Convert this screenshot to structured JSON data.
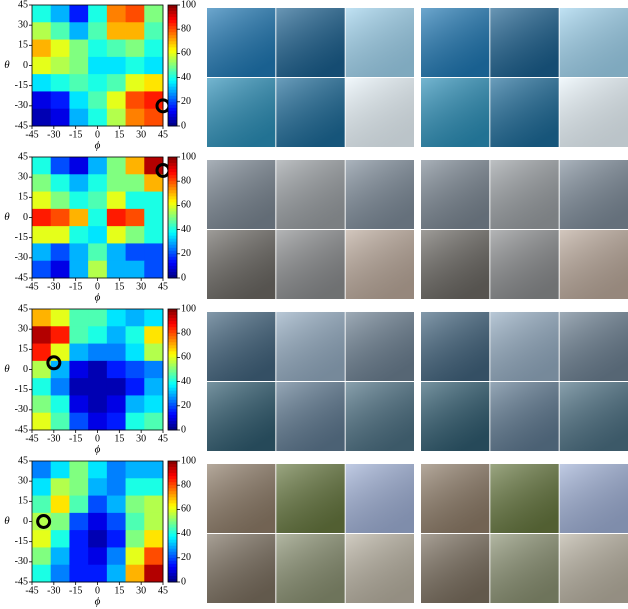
{
  "chart_data": [
    {
      "type": "heatmap",
      "xlabel": "ϕ",
      "ylabel": "θ",
      "xlim": [
        -45,
        45
      ],
      "ylim": [
        -45,
        45
      ],
      "xticks": [
        -45,
        -30,
        -15,
        0,
        15,
        30,
        45
      ],
      "yticks": [
        -45,
        -30,
        -15,
        0,
        15,
        30,
        45
      ],
      "clim": [
        0,
        100
      ],
      "cticks": [
        0,
        20,
        40,
        60,
        80,
        100
      ],
      "colormap": "jet",
      "marker": [
        45,
        -30
      ],
      "values": [
        [
          40,
          30,
          15,
          40,
          75,
          80,
          50
        ],
        [
          55,
          45,
          30,
          45,
          70,
          70,
          45
        ],
        [
          70,
          60,
          50,
          40,
          45,
          50,
          40
        ],
        [
          60,
          55,
          50,
          35,
          35,
          40,
          35
        ],
        [
          35,
          40,
          45,
          40,
          45,
          60,
          65
        ],
        [
          10,
          15,
          35,
          45,
          60,
          80,
          85
        ],
        [
          5,
          10,
          30,
          40,
          55,
          75,
          80
        ]
      ]
    },
    {
      "type": "heatmap",
      "xlabel": "ϕ",
      "ylabel": "θ",
      "xlim": [
        -45,
        45
      ],
      "ylim": [
        -45,
        45
      ],
      "xticks": [
        -45,
        -30,
        -15,
        0,
        15,
        30,
        45
      ],
      "yticks": [
        -45,
        -30,
        -15,
        0,
        15,
        30,
        45
      ],
      "clim": [
        0,
        100
      ],
      "cticks": [
        0,
        20,
        40,
        60,
        80,
        100
      ],
      "colormap": "jet",
      "marker": [
        45,
        35
      ],
      "values": [
        [
          40,
          20,
          10,
          30,
          50,
          70,
          95
        ],
        [
          50,
          40,
          30,
          40,
          50,
          50,
          70
        ],
        [
          60,
          50,
          40,
          45,
          60,
          40,
          40
        ],
        [
          85,
          80,
          70,
          40,
          85,
          80,
          40
        ],
        [
          60,
          60,
          40,
          35,
          60,
          50,
          40
        ],
        [
          30,
          20,
          30,
          45,
          30,
          20,
          20
        ],
        [
          20,
          10,
          30,
          55,
          30,
          30,
          20
        ]
      ]
    },
    {
      "type": "heatmap",
      "xlabel": "ϕ",
      "ylabel": "θ",
      "xlim": [
        -45,
        45
      ],
      "ylim": [
        -45,
        45
      ],
      "xticks": [
        -45,
        -30,
        -15,
        0,
        15,
        30,
        45
      ],
      "yticks": [
        -45,
        -30,
        -15,
        0,
        15,
        30,
        45
      ],
      "clim": [
        0,
        100
      ],
      "cticks": [
        0,
        20,
        40,
        60,
        80,
        100
      ],
      "colormap": "jet",
      "marker": [
        -30,
        5
      ],
      "values": [
        [
          70,
          60,
          45,
          45,
          35,
          30,
          35
        ],
        [
          95,
          85,
          45,
          40,
          30,
          40,
          65
        ],
        [
          85,
          60,
          30,
          25,
          25,
          35,
          55
        ],
        [
          55,
          30,
          10,
          5,
          15,
          20,
          25
        ],
        [
          40,
          25,
          5,
          5,
          5,
          15,
          30
        ],
        [
          50,
          40,
          10,
          5,
          10,
          30,
          35
        ],
        [
          60,
          45,
          20,
          10,
          15,
          40,
          45
        ]
      ]
    },
    {
      "type": "heatmap",
      "xlabel": "ϕ",
      "ylabel": "θ",
      "xlim": [
        -45,
        45
      ],
      "ylim": [
        -45,
        45
      ],
      "xticks": [
        -45,
        -30,
        -15,
        0,
        15,
        30,
        45
      ],
      "yticks": [
        -45,
        -30,
        -15,
        0,
        15,
        30,
        45
      ],
      "clim": [
        0,
        100
      ],
      "cticks": [
        0,
        20,
        40,
        60,
        80,
        100
      ],
      "colormap": "jet",
      "marker": [
        -37,
        0
      ],
      "values": [
        [
          25,
          35,
          50,
          35,
          25,
          30,
          30
        ],
        [
          35,
          55,
          50,
          30,
          25,
          40,
          40
        ],
        [
          45,
          65,
          45,
          20,
          30,
          50,
          55
        ],
        [
          55,
          50,
          20,
          10,
          20,
          45,
          55
        ],
        [
          60,
          40,
          15,
          5,
          15,
          50,
          65
        ],
        [
          50,
          30,
          15,
          10,
          25,
          60,
          80
        ],
        [
          40,
          25,
          15,
          15,
          30,
          70,
          95
        ]
      ]
    }
  ]
}
